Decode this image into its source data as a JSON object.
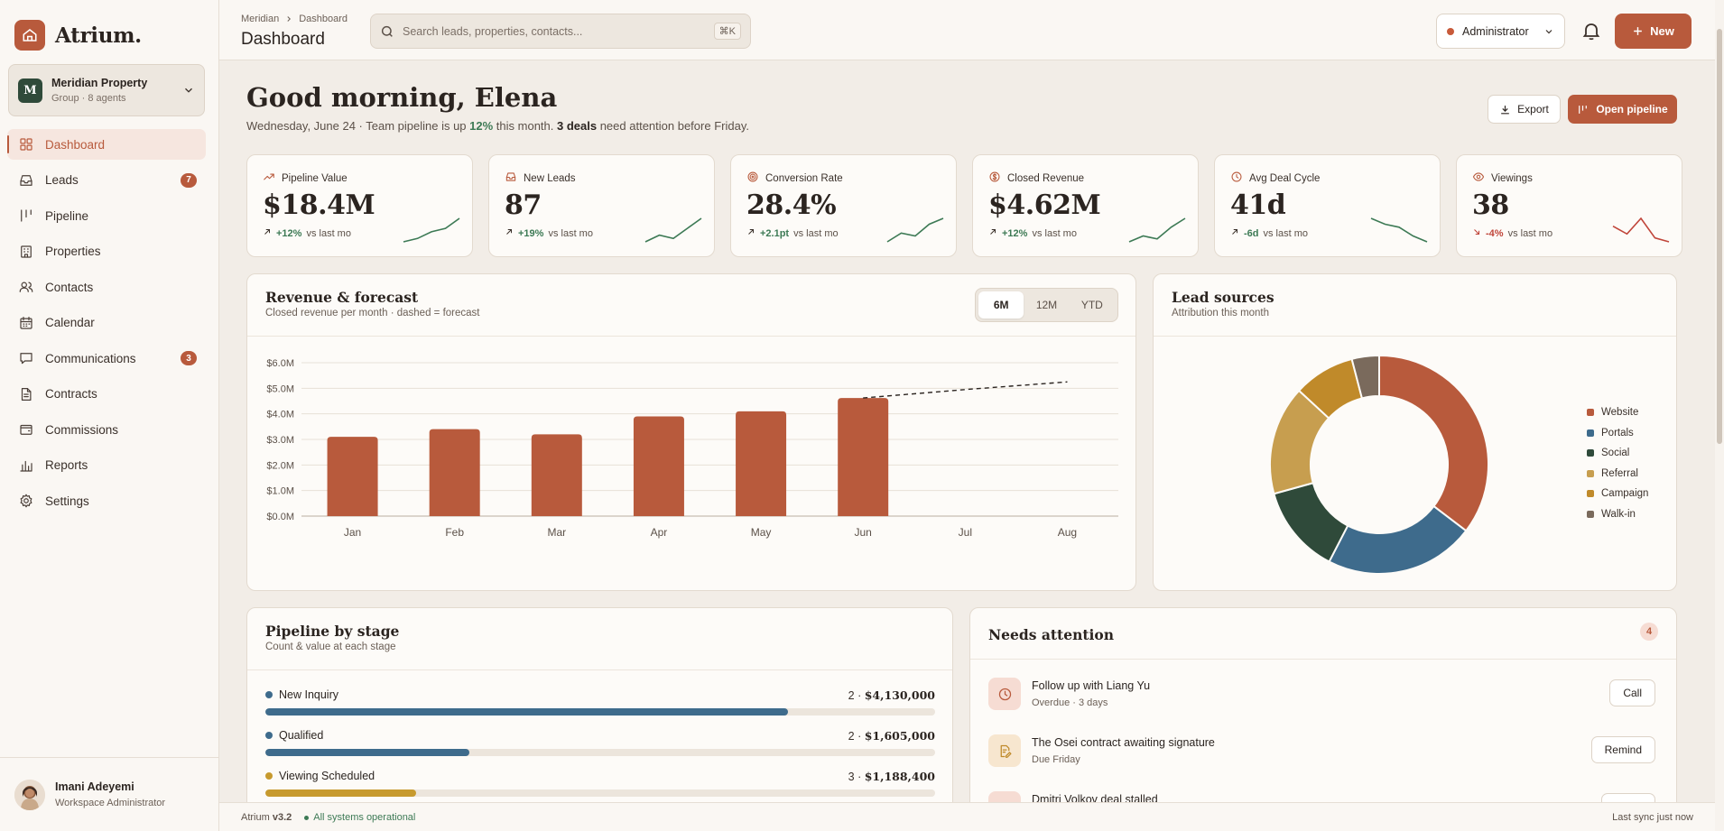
{
  "app": {
    "name": "Atrium."
  },
  "org": {
    "initial": "M",
    "name": "Meridian Property",
    "sub": "Group · 8 agents"
  },
  "nav": [
    {
      "label": "Dashboard",
      "icon": "grid-icon",
      "active": true,
      "badge": ""
    },
    {
      "label": "Leads",
      "icon": "inbox-icon",
      "badge": "7"
    },
    {
      "label": "Pipeline",
      "icon": "kanban-icon",
      "badge": ""
    },
    {
      "label": "Properties",
      "icon": "building-icon",
      "badge": ""
    },
    {
      "label": "Contacts",
      "icon": "users-icon",
      "badge": ""
    },
    {
      "label": "Calendar",
      "icon": "calendar-icon",
      "badge": ""
    },
    {
      "label": "Communications",
      "icon": "chat-icon",
      "badge": "3"
    },
    {
      "label": "Contracts",
      "icon": "document-icon",
      "badge": ""
    },
    {
      "label": "Commissions",
      "icon": "wallet-icon",
      "badge": ""
    },
    {
      "label": "Reports",
      "icon": "bar-chart-icon",
      "badge": ""
    },
    {
      "label": "Settings",
      "icon": "gear-icon",
      "badge": ""
    }
  ],
  "user": {
    "name": "Imani Adeyemi",
    "role": "Workspace Administrator"
  },
  "header": {
    "breadcrumb": [
      "Meridian",
      "Dashboard"
    ],
    "title": "Dashboard",
    "search_placeholder": "Search leads, properties, contacts...",
    "search_shortcut": "⌘K",
    "role": "Administrator",
    "new_label": "New"
  },
  "greeting": {
    "title": "Good morning, Elena",
    "date": "Wednesday, June 24 · Team pipeline is up ",
    "pct": "12%",
    "mid": " this month. ",
    "deals": "3 deals",
    "end": " need attention before Friday."
  },
  "actions": {
    "export": "Export",
    "open_pipeline": "Open pipeline"
  },
  "kpis": [
    {
      "label": "Pipeline Value",
      "icon": "trend-up-icon",
      "value": "$18.4M",
      "delta": "+12%",
      "delta_text": "vs last mo",
      "dir": "up",
      "spark": [
        3,
        4,
        6,
        7,
        10
      ],
      "spark_color": "#3d7a55"
    },
    {
      "label": "New Leads",
      "icon": "inbox-icon",
      "value": "87",
      "delta": "+19%",
      "delta_text": "vs last mo",
      "dir": "up",
      "spark": [
        3,
        5,
        4,
        7,
        10
      ],
      "spark_color": "#3d7a55"
    },
    {
      "label": "Conversion Rate",
      "icon": "target-icon",
      "value": "28.4%",
      "delta": "+2.1pt",
      "delta_text": "vs last mo",
      "dir": "up",
      "spark": [
        2,
        5,
        4,
        8,
        10
      ],
      "spark_color": "#3d7a55"
    },
    {
      "label": "Closed Revenue",
      "icon": "dollar-icon",
      "value": "$4.62M",
      "delta": "+12%",
      "delta_text": "vs last mo",
      "dir": "up",
      "spark": [
        2,
        4,
        3,
        7,
        10
      ],
      "spark_color": "#3d7a55"
    },
    {
      "label": "Avg Deal Cycle",
      "icon": "clock-icon",
      "value": "41d",
      "delta": "-6d",
      "delta_text": "vs last mo",
      "dir": "up",
      "spark": [
        10,
        8,
        7,
        4,
        2
      ],
      "spark_color": "#3d7a55"
    },
    {
      "label": "Viewings",
      "icon": "eye-icon",
      "value": "38",
      "delta": "-4%",
      "delta_text": "vs last mo",
      "dir": "down",
      "spark": [
        7,
        5,
        9,
        4,
        3
      ],
      "spark_color": "#c0453a"
    }
  ],
  "revenue": {
    "title": "Revenue & forecast",
    "subtitle": "Closed revenue per month · dashed = forecast",
    "ranges": [
      "6M",
      "12M",
      "YTD"
    ],
    "active_range": "6M"
  },
  "lead_sources": {
    "title": "Lead sources",
    "subtitle": "Attribution this month"
  },
  "pipeline": {
    "title": "Pipeline by stage",
    "subtitle": "Count & value at each stage",
    "stages": [
      {
        "name": "New Inquiry",
        "count": "2 · ",
        "value": "$4,130,000",
        "fill": 0.78,
        "color": "#3e6b8c"
      },
      {
        "name": "Qualified",
        "count": "2 · ",
        "value": "$1,605,000",
        "fill": 0.305,
        "color": "#3e6b8c"
      },
      {
        "name": "Viewing Scheduled",
        "count": "3 · ",
        "value": "$1,188,400",
        "fill": 0.225,
        "color": "#c79a2e"
      }
    ]
  },
  "attention": {
    "title": "Needs attention",
    "count": "4",
    "items": [
      {
        "title": "Follow up with Liang Yu",
        "meta": "Overdue · 3 days",
        "action": "Call",
        "icon": "clock-icon"
      },
      {
        "title": "The Osei contract awaiting signature",
        "meta": "Due Friday",
        "action": "Remind",
        "icon": "pen-document-icon"
      },
      {
        "title": "Dmitri Volkov deal stalled",
        "meta": "",
        "action": "",
        "icon": "alert-icon"
      }
    ]
  },
  "footer": {
    "app": "Atrium",
    "version": "v3.2",
    "status": "All systems operational",
    "sync": "Last sync just now"
  },
  "chart_data": [
    {
      "type": "bar",
      "title": "Revenue & forecast",
      "categories": [
        "Jan",
        "Feb",
        "Mar",
        "Apr",
        "May",
        "Jun",
        "Jul",
        "Aug"
      ],
      "series": [
        {
          "values": [
            3.1,
            3.4,
            3.2,
            3.9,
            4.1,
            4.62,
            null,
            null
          ]
        },
        {
          "values": [
            null,
            null,
            null,
            null,
            null,
            4.62,
            4.95,
            5.25
          ]
        }
      ],
      "ylim": [
        0,
        6
      ],
      "yticks": [
        "$0.0M",
        "$1.0M",
        "$2.0M",
        "$3.0M",
        "$4.0M",
        "$5.0M",
        "$6.0M"
      ],
      "grid": true
    },
    {
      "type": "pie",
      "title": "Lead sources",
      "labels": [
        "Website",
        "Portals",
        "Social",
        "Referral",
        "Campaign",
        "Walk-in"
      ],
      "values": [
        35,
        22,
        13,
        16,
        9,
        4
      ],
      "colors": [
        "#b85a3c",
        "#3e6b8c",
        "#2f4a3a",
        "#c79e4f",
        "#c08a2a",
        "#7a6a5c"
      ],
      "legend": "right"
    }
  ]
}
